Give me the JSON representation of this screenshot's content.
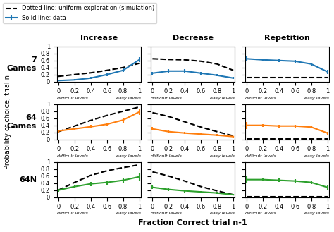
{
  "chart_data": [
    {
      "type": "line",
      "title": "Increase",
      "ylabel": "7\nGames",
      "legend": "upper left",
      "x": [
        0.0,
        0.2,
        0.4,
        0.6,
        0.8,
        1.0
      ],
      "series": [
        {
          "name": "Dotted line: uniform exploration (simulation)",
          "color": "#000000",
          "line_style": "dashed",
          "values": [
            0.15,
            0.2,
            0.25,
            0.32,
            0.4,
            0.52
          ]
        },
        {
          "name": "Solid line: data",
          "line_style": "solid",
          "values": [
            0.03,
            0.05,
            0.1,
            0.2,
            0.32,
            0.62
          ],
          "errors": [
            0.02,
            0.02,
            0.03,
            0.04,
            0.05,
            0.07
          ]
        }
      ],
      "xlim": [
        -0.02,
        1.02
      ],
      "ylim": [
        0,
        1.0
      ],
      "xticks": [
        0,
        0.2,
        0.4,
        0.6,
        0.8,
        1
      ],
      "yticks": [
        0,
        0.2,
        0.4,
        0.6,
        0.8,
        1
      ],
      "annotations": [
        "difficult levels",
        "easy levels"
      ]
    },
    {
      "type": "line",
      "title": "Decrease",
      "x": [
        0.0,
        0.2,
        0.4,
        0.6,
        0.8,
        1.0
      ],
      "series": [
        {
          "color": "#000000",
          "line_style": "dashed",
          "values": [
            0.65,
            0.63,
            0.62,
            0.58,
            0.5,
            0.32
          ]
        },
        {
          "line_style": "solid",
          "values": [
            0.24,
            0.3,
            0.3,
            0.24,
            0.18,
            0.1
          ],
          "errors": [
            0.04,
            0.05,
            0.05,
            0.04,
            0.03,
            0.03
          ]
        }
      ],
      "xlim": [
        -0.02,
        1.02
      ],
      "ylim": [
        0,
        1.0
      ],
      "xticks": [
        0,
        0.2,
        0.4,
        0.6,
        0.8,
        1
      ],
      "yticks": [
        0,
        0.2,
        0.4,
        0.6,
        0.8,
        1
      ],
      "tick_labels": "x",
      "annotations": [
        "difficult levels",
        "easy levels"
      ]
    },
    {
      "type": "line",
      "title": "Repetition",
      "x": [
        0.0,
        0.2,
        0.4,
        0.6,
        0.8,
        1.0
      ],
      "series": [
        {
          "color": "#000000",
          "line_style": "dashed",
          "values": [
            0.12,
            0.12,
            0.12,
            0.12,
            0.12,
            0.12
          ]
        },
        {
          "line_style": "solid",
          "values": [
            0.65,
            0.62,
            0.6,
            0.58,
            0.5,
            0.28
          ],
          "errors": [
            0.08,
            0.04,
            0.04,
            0.04,
            0.04,
            0.06
          ]
        }
      ],
      "xlim": [
        -0.02,
        1.02
      ],
      "ylim": [
        0,
        1.0
      ],
      "xticks": [
        0,
        0.2,
        0.4,
        0.6,
        0.8,
        1
      ],
      "yticks": [
        0,
        0.2,
        0.4,
        0.6,
        0.8,
        1
      ],
      "tick_labels": "x",
      "annotations": [
        "difficult levels",
        "easy levels"
      ]
    },
    {
      "type": "line",
      "ylabel": "64\nGames",
      "x": [
        0.0,
        0.2,
        0.4,
        0.6,
        0.8,
        1.0
      ],
      "series": [
        {
          "color": "#000000",
          "line_style": "dashed",
          "values": [
            0.22,
            0.38,
            0.54,
            0.68,
            0.8,
            0.92
          ]
        },
        {
          "line_style": "solid",
          "values": [
            0.24,
            0.3,
            0.36,
            0.43,
            0.55,
            0.78
          ],
          "errors": [
            0.04,
            0.04,
            0.05,
            0.05,
            0.07,
            0.09
          ]
        }
      ],
      "xlim": [
        -0.02,
        1.02
      ],
      "ylim": [
        0,
        1.0
      ],
      "xticks": [
        0,
        0.2,
        0.4,
        0.6,
        0.8,
        1
      ],
      "yticks": [
        0,
        0.2,
        0.4,
        0.6,
        0.8,
        1
      ],
      "annotations": [
        "difficult levels",
        "easy levels",
        "Probability of choice, trial n"
      ]
    },
    {
      "type": "line",
      "x": [
        0.0,
        0.2,
        0.4,
        0.6,
        0.8,
        1.0
      ],
      "series": [
        {
          "color": "#000000",
          "line_style": "dashed",
          "values": [
            0.76,
            0.65,
            0.5,
            0.35,
            0.22,
            0.1
          ]
        },
        {
          "line_style": "solid",
          "values": [
            0.3,
            0.22,
            0.18,
            0.15,
            0.12,
            0.08
          ],
          "errors": [
            0.05,
            0.04,
            0.03,
            0.03,
            0.03,
            0.02
          ]
        }
      ],
      "xlim": [
        -0.02,
        1.02
      ],
      "ylim": [
        0,
        1.0
      ],
      "xticks": [
        0,
        0.2,
        0.4,
        0.6,
        0.8,
        1
      ],
      "yticks": [
        0,
        0.2,
        0.4,
        0.6,
        0.8,
        1
      ],
      "tick_labels": "x",
      "annotations": [
        "difficult levels",
        "easy levels"
      ]
    },
    {
      "type": "line",
      "x": [
        0.0,
        0.2,
        0.4,
        0.6,
        0.8,
        1.0
      ],
      "series": [
        {
          "color": "#000000",
          "line_style": "dashed",
          "values": [
            0.02,
            0.02,
            0.02,
            0.02,
            0.02,
            0.02
          ]
        },
        {
          "line_style": "solid",
          "values": [
            0.4,
            0.4,
            0.38,
            0.38,
            0.35,
            0.18
          ],
          "errors": [
            0.1,
            0.04,
            0.04,
            0.04,
            0.04,
            0.04
          ]
        }
      ],
      "xlim": [
        -0.02,
        1.02
      ],
      "ylim": [
        0,
        1.0
      ],
      "xticks": [
        0,
        0.2,
        0.4,
        0.6,
        0.8,
        1
      ],
      "yticks": [
        0,
        0.2,
        0.4,
        0.6,
        0.8,
        1
      ],
      "tick_labels": "x",
      "annotations": [
        "difficult levels",
        "easy levels"
      ]
    },
    {
      "type": "line",
      "ylabel": "64N",
      "x": [
        0.0,
        0.2,
        0.4,
        0.6,
        0.8,
        1.0
      ],
      "series": [
        {
          "color": "#000000",
          "line_style": "dashed",
          "values": [
            0.2,
            0.42,
            0.62,
            0.75,
            0.84,
            0.92
          ]
        },
        {
          "line_style": "solid",
          "values": [
            0.2,
            0.3,
            0.38,
            0.42,
            0.48,
            0.58
          ],
          "errors": [
            0.04,
            0.05,
            0.06,
            0.06,
            0.06,
            0.1
          ]
        }
      ],
      "xlim": [
        -0.02,
        1.02
      ],
      "ylim": [
        0,
        1.0
      ],
      "xticks": [
        0,
        0.2,
        0.4,
        0.6,
        0.8,
        1
      ],
      "yticks": [
        0,
        0.2,
        0.4,
        0.6,
        0.8,
        1
      ],
      "annotations": [
        "difficult levels",
        "easy levels"
      ]
    },
    {
      "type": "line",
      "xlabel": "Fraction Correct trial n-1",
      "x": [
        0.0,
        0.2,
        0.4,
        0.6,
        0.8,
        1.0
      ],
      "series": [
        {
          "color": "#000000",
          "line_style": "dashed",
          "values": [
            0.72,
            0.6,
            0.46,
            0.3,
            0.18,
            0.07
          ]
        },
        {
          "line_style": "solid",
          "values": [
            0.28,
            0.22,
            0.18,
            0.15,
            0.12,
            0.07
          ],
          "errors": [
            0.05,
            0.04,
            0.04,
            0.03,
            0.03,
            0.02
          ]
        }
      ],
      "xlim": [
        -0.02,
        1.02
      ],
      "ylim": [
        0,
        1.0
      ],
      "xticks": [
        0,
        0.2,
        0.4,
        0.6,
        0.8,
        1
      ],
      "yticks": [
        0,
        0.2,
        0.4,
        0.6,
        0.8,
        1
      ],
      "tick_labels": "x",
      "annotations": [
        "difficult levels",
        "easy levels"
      ]
    },
    {
      "type": "line",
      "x": [
        0.0,
        0.2,
        0.4,
        0.6,
        0.8,
        1.0
      ],
      "series": [
        {
          "color": "#000000",
          "line_style": "dashed",
          "values": [
            0.02,
            0.02,
            0.02,
            0.02,
            0.02,
            0.02
          ]
        },
        {
          "line_style": "solid",
          "values": [
            0.5,
            0.5,
            0.48,
            0.46,
            0.42,
            0.28
          ],
          "errors": [
            0.1,
            0.05,
            0.05,
            0.05,
            0.05,
            0.06
          ]
        }
      ],
      "xlim": [
        -0.02,
        1.02
      ],
      "ylim": [
        0,
        1.0
      ],
      "xticks": [
        0,
        0.2,
        0.4,
        0.6,
        0.8,
        1
      ],
      "yticks": [
        0,
        0.2,
        0.4,
        0.6,
        0.8,
        1
      ],
      "tick_labels": "x",
      "annotations": [
        "difficult levels",
        "easy levels"
      ]
    }
  ]
}
